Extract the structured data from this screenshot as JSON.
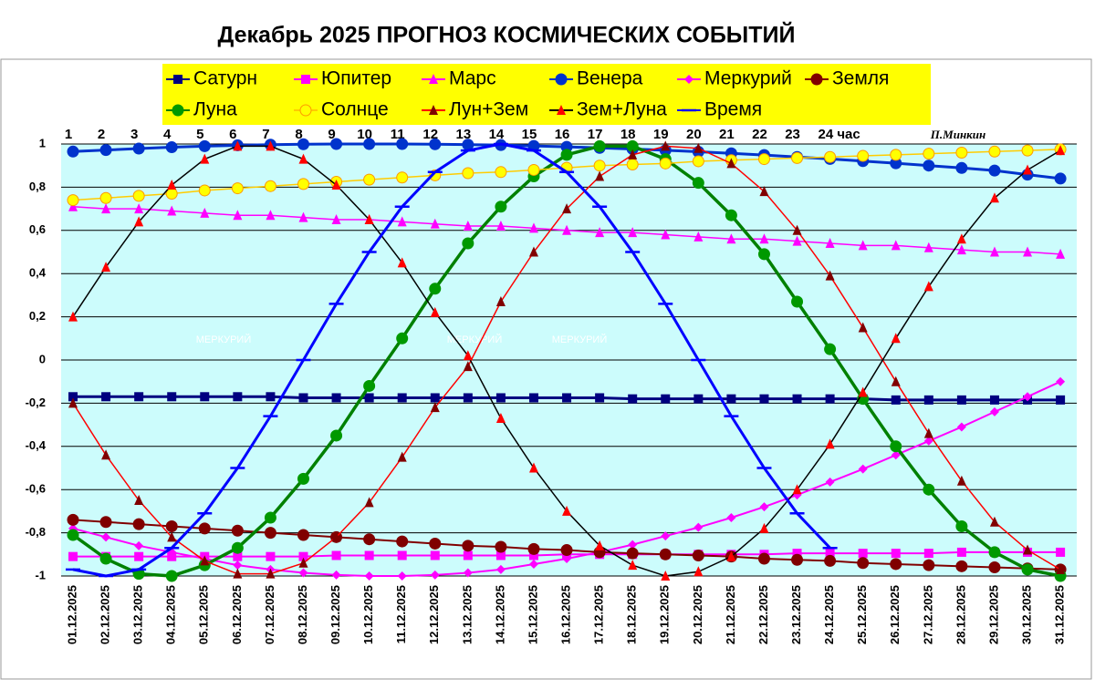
{
  "chart_data": {
    "type": "line",
    "title": "Декабрь 2025 ПРОГНОЗ КОСМИЧЕСКИХ СОБЫТИЙ",
    "signature": "П.Минкин",
    "hour_labels": [
      "1",
      "2",
      "3",
      "4",
      "5",
      "6",
      "7",
      "8",
      "9",
      "10",
      "11",
      "12",
      "13",
      "14",
      "15",
      "16",
      "17",
      "18",
      "19",
      "20",
      "21",
      "22",
      "23",
      "24 час"
    ],
    "annotations": [
      "МЕРКУРИЙ",
      "МЕРКУРИЙ",
      "МЕРКУРИЙ"
    ],
    "x": [
      "01.12.2025",
      "02.12.2025",
      "03.12.2025",
      "04.12.2025",
      "05.12.2025",
      "06.12.2025",
      "07.12.2025",
      "08.12.2025",
      "09.12.2025",
      "10.12.2025",
      "11.12.2025",
      "12.12.2025",
      "13.12.2025",
      "14.12.2025",
      "15.12.2025",
      "16.12.2025",
      "17.12.2025",
      "18.12.2025",
      "19.12.2025",
      "20.12.2025",
      "21.12.2025",
      "22.12.2025",
      "23.12.2025",
      "24.12.2025",
      "25.12.2025",
      "26.12.2025",
      "27.12.2025",
      "28.12.2025",
      "29.12.2025",
      "30.12.2025",
      "31.12.2025"
    ],
    "ylim": [
      -1,
      1
    ],
    "yticks": [
      -1,
      {
        "value": -0.8,
        "label": "-0,8"
      },
      {
        "value": -0.6,
        "label": "-0,6"
      },
      {
        "value": -0.4,
        "label": "-0,4"
      },
      {
        "value": -0.2,
        "label": "-0,2"
      },
      0,
      {
        "value": 0.2,
        "label": "0,2"
      },
      {
        "value": 0.4,
        "label": "0,4"
      },
      {
        "value": 0.6,
        "label": "0,6"
      },
      {
        "value": 0.8,
        "label": "0,8"
      },
      1
    ],
    "grid": true,
    "series": [
      {
        "name": "Сатурн",
        "color": "#000080",
        "line_color": "#000080",
        "marker": "square",
        "values": [
          -0.17,
          -0.17,
          -0.17,
          -0.17,
          -0.17,
          -0.17,
          -0.17,
          -0.175,
          -0.175,
          -0.175,
          -0.175,
          -0.175,
          -0.175,
          -0.175,
          -0.175,
          -0.175,
          -0.175,
          -0.18,
          -0.18,
          -0.18,
          -0.18,
          -0.18,
          -0.18,
          -0.18,
          -0.18,
          -0.185,
          -0.185,
          -0.185,
          -0.185,
          -0.185,
          -0.185
        ]
      },
      {
        "name": "Юпитер",
        "color": "#ff00ff",
        "line_color": "#ff00ff",
        "marker": "square",
        "values": [
          -0.91,
          -0.91,
          -0.91,
          -0.91,
          -0.91,
          -0.91,
          -0.91,
          -0.91,
          -0.905,
          -0.905,
          -0.905,
          -0.905,
          -0.905,
          -0.905,
          -0.905,
          -0.9,
          -0.9,
          -0.9,
          -0.9,
          -0.9,
          -0.9,
          -0.9,
          -0.895,
          -0.895,
          -0.895,
          -0.895,
          -0.895,
          -0.89,
          -0.89,
          -0.89,
          -0.89
        ]
      },
      {
        "name": "Марс",
        "color": "#ff00ff",
        "line_color": "#ff00ff",
        "marker": "triangle",
        "values": [
          0.71,
          0.7,
          0.7,
          0.69,
          0.68,
          0.67,
          0.67,
          0.66,
          0.65,
          0.65,
          0.64,
          0.63,
          0.62,
          0.62,
          0.61,
          0.6,
          0.59,
          0.59,
          0.58,
          0.57,
          0.56,
          0.56,
          0.55,
          0.54,
          0.53,
          0.53,
          0.52,
          0.51,
          0.5,
          0.5,
          0.49
        ]
      },
      {
        "name": "Венера",
        "color": "#0033cc",
        "line_color": "#0033cc",
        "marker": "circle",
        "values": [
          0.965,
          0.972,
          0.979,
          0.985,
          0.99,
          0.994,
          0.997,
          0.999,
          1,
          1,
          1,
          0.999,
          0.997,
          0.995,
          0.991,
          0.987,
          0.982,
          0.977,
          0.971,
          0.964,
          0.957,
          0.949,
          0.94,
          0.931,
          0.921,
          0.911,
          0.9,
          0.889,
          0.877,
          0.858,
          0.84
        ]
      },
      {
        "name": "Меркурий",
        "color": "#ff00ff",
        "line_color": "#ff00ff",
        "marker": "diamond",
        "values": [
          -0.78,
          -0.82,
          -0.86,
          -0.89,
          -0.92,
          -0.95,
          -0.97,
          -0.985,
          -0.995,
          -1,
          -1,
          -0.995,
          -0.985,
          -0.97,
          -0.945,
          -0.92,
          -0.89,
          -0.855,
          -0.815,
          -0.775,
          -0.73,
          -0.68,
          -0.625,
          -0.565,
          -0.505,
          -0.44,
          -0.375,
          -0.31,
          -0.24,
          -0.17,
          -0.1
        ]
      },
      {
        "name": "Земля",
        "color": "#800000",
        "line_color": "#800000",
        "marker": "circle",
        "values": [
          -0.74,
          -0.75,
          -0.76,
          -0.77,
          -0.78,
          -0.79,
          -0.8,
          -0.81,
          -0.82,
          -0.83,
          -0.84,
          -0.85,
          -0.86,
          -0.865,
          -0.875,
          -0.88,
          -0.89,
          -0.895,
          -0.9,
          -0.905,
          -0.91,
          -0.92,
          -0.925,
          -0.93,
          -0.94,
          -0.945,
          -0.95,
          -0.955,
          -0.96,
          -0.965,
          -0.97
        ]
      },
      {
        "name": "Луна",
        "color": "#009900",
        "line_color": "#008000",
        "marker": "circle",
        "values": [
          -0.81,
          -0.92,
          -0.99,
          -1,
          -0.95,
          -0.87,
          -0.73,
          -0.55,
          -0.35,
          -0.12,
          0.1,
          0.33,
          0.54,
          0.71,
          0.85,
          0.95,
          0.99,
          0.99,
          0.93,
          0.82,
          0.67,
          0.49,
          0.27,
          0.05,
          -0.18,
          -0.4,
          -0.6,
          -0.77,
          -0.89,
          -0.97,
          -1
        ]
      },
      {
        "name": "Солнце",
        "color": "#ffff00",
        "line_color": "#ffcc00",
        "marker": "circle",
        "values": [
          0.74,
          0.75,
          0.76,
          0.77,
          0.785,
          0.795,
          0.805,
          0.815,
          0.825,
          0.835,
          0.845,
          0.855,
          0.865,
          0.87,
          0.88,
          0.89,
          0.9,
          0.905,
          0.91,
          0.92,
          0.925,
          0.93,
          0.935,
          0.94,
          0.945,
          0.95,
          0.955,
          0.96,
          0.965,
          0.97,
          0.975
        ]
      },
      {
        "name": "Лун+Зем",
        "color": "#800000",
        "line_color": "#ff0000",
        "marker": "triangle",
        "values": [
          -0.2,
          -0.44,
          -0.65,
          -0.82,
          -0.93,
          -0.99,
          -0.99,
          -0.94,
          -0.82,
          -0.66,
          -0.45,
          -0.22,
          -0.03,
          0.27,
          0.5,
          0.7,
          0.85,
          0.95,
          0.99,
          0.98,
          0.91,
          0.78,
          0.6,
          0.39,
          0.15,
          -0.1,
          -0.34,
          -0.56,
          -0.75,
          -0.88,
          -0.97
        ]
      },
      {
        "name": "Зем+Луна",
        "color": "#ff0000",
        "line_color": "#000000",
        "marker": "triangle",
        "values": [
          0.2,
          0.43,
          0.64,
          0.81,
          0.93,
          0.99,
          0.99,
          0.93,
          0.81,
          0.65,
          0.45,
          0.22,
          0.02,
          -0.27,
          -0.5,
          -0.7,
          -0.86,
          -0.95,
          -1,
          -0.98,
          -0.91,
          -0.78,
          -0.6,
          -0.39,
          -0.15,
          0.1,
          0.34,
          0.56,
          0.75,
          0.88,
          0.97
        ]
      },
      {
        "name": "Время",
        "color": "#0000ff",
        "line_color": "#0000ff",
        "marker": "dash",
        "values": [
          -0.97,
          -1,
          -0.97,
          -0.87,
          -0.71,
          -0.5,
          -0.26,
          0,
          0.26,
          0.5,
          0.71,
          0.87,
          0.97,
          1,
          0.97,
          0.87,
          0.71,
          0.5,
          0.26,
          0,
          -0.26,
          -0.5,
          -0.71,
          -0.87,
          null,
          null,
          null,
          null,
          null,
          null,
          null
        ]
      }
    ]
  }
}
